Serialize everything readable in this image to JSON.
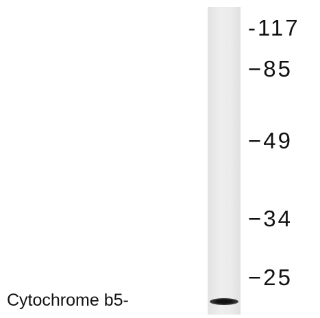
{
  "blot": {
    "markers": [
      "-117",
      "−85",
      "−49",
      "−34",
      "−25"
    ],
    "band_label": "Cytochrome b5-"
  }
}
